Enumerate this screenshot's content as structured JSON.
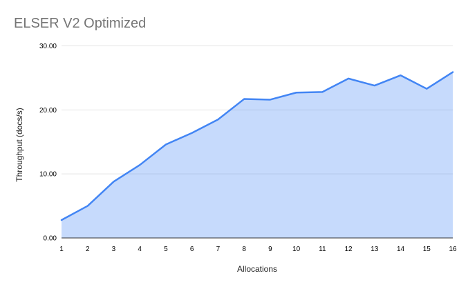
{
  "chart": {
    "title": "ELSER V2 Optimized",
    "xlabel": "Allocations",
    "ylabel": "Throughput (docs/s)"
  },
  "chart_data": {
    "type": "area",
    "title": "ELSER V2 Optimized",
    "xlabel": "Allocations",
    "ylabel": "Throughput (docs/s)",
    "x": [
      1,
      2,
      3,
      4,
      5,
      6,
      7,
      8,
      9,
      10,
      11,
      12,
      13,
      14,
      15,
      16
    ],
    "x_tick_labels": [
      "1",
      "2",
      "3",
      "4",
      "5",
      "6",
      "7",
      "8",
      "9",
      "10",
      "11",
      "12",
      "13",
      "14",
      "15",
      "16"
    ],
    "values": [
      2.8,
      5.0,
      8.8,
      11.4,
      14.6,
      16.4,
      18.5,
      21.7,
      21.6,
      22.7,
      22.8,
      24.9,
      23.8,
      25.4,
      23.3,
      25.9
    ],
    "ylim": [
      0,
      30
    ],
    "yticks": [
      0,
      10,
      20,
      30
    ],
    "y_tick_labels": [
      "0.00",
      "10.00",
      "20.00",
      "30.00"
    ],
    "grid": "horizontal-only",
    "legend": "none",
    "colors": {
      "line": "#4285f4",
      "area_fill": "#4285f4",
      "area_opacity": 0.3,
      "gridline": "#e3e3e3",
      "axis_line": "#333333",
      "tick_text": "#000000",
      "title_text": "#757575",
      "background": "#ffffff"
    }
  }
}
